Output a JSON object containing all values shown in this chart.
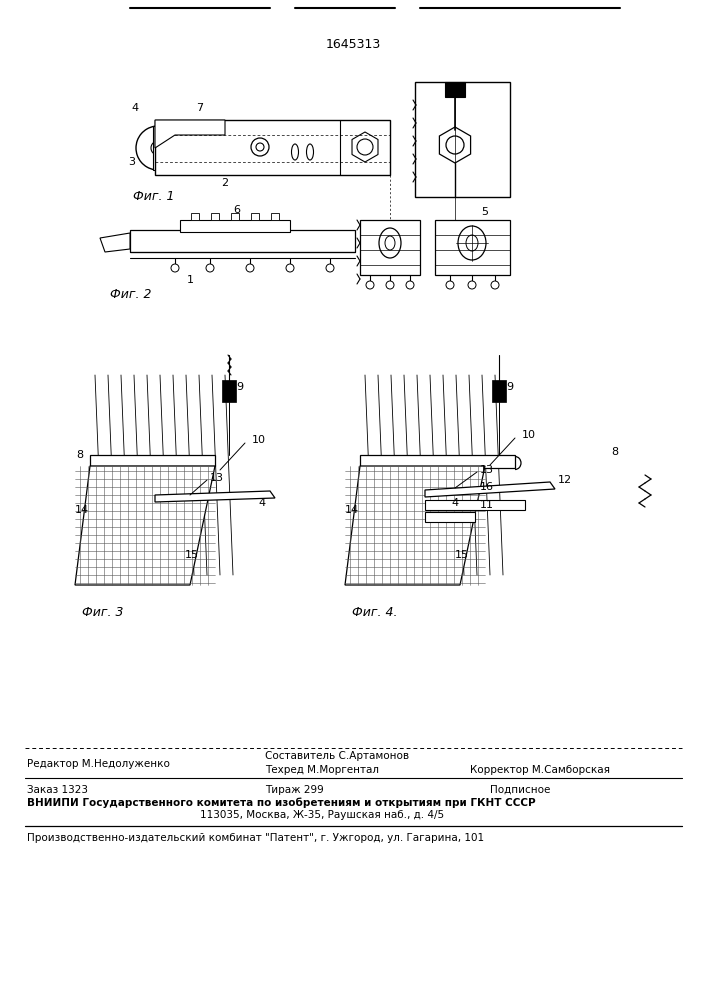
{
  "patent_number": "1645313",
  "background_color": "#ffffff",
  "fig_width": 7.07,
  "fig_height": 10.0,
  "footer": {
    "editor": "Редактор М.Недолуженко",
    "compiler": "Составитель С.Артамонов",
    "techred": "Техред М.Моргентал",
    "corrector": "Корректор М.Самборская",
    "order": "Заказ 1323",
    "circulation": "Тираж 299",
    "subscription": "Подписное",
    "vniip_line": "ВНИИПИ Государственного комитета по изобретениям и открытиям при ГКНТ СССР",
    "address": "113035, Москва, Ж-35, Раушская наб., д. 4/5",
    "factory": "Производственно-издательский комбинат \"Патент\", г. Ужгород, ул. Гагарина, 101"
  }
}
